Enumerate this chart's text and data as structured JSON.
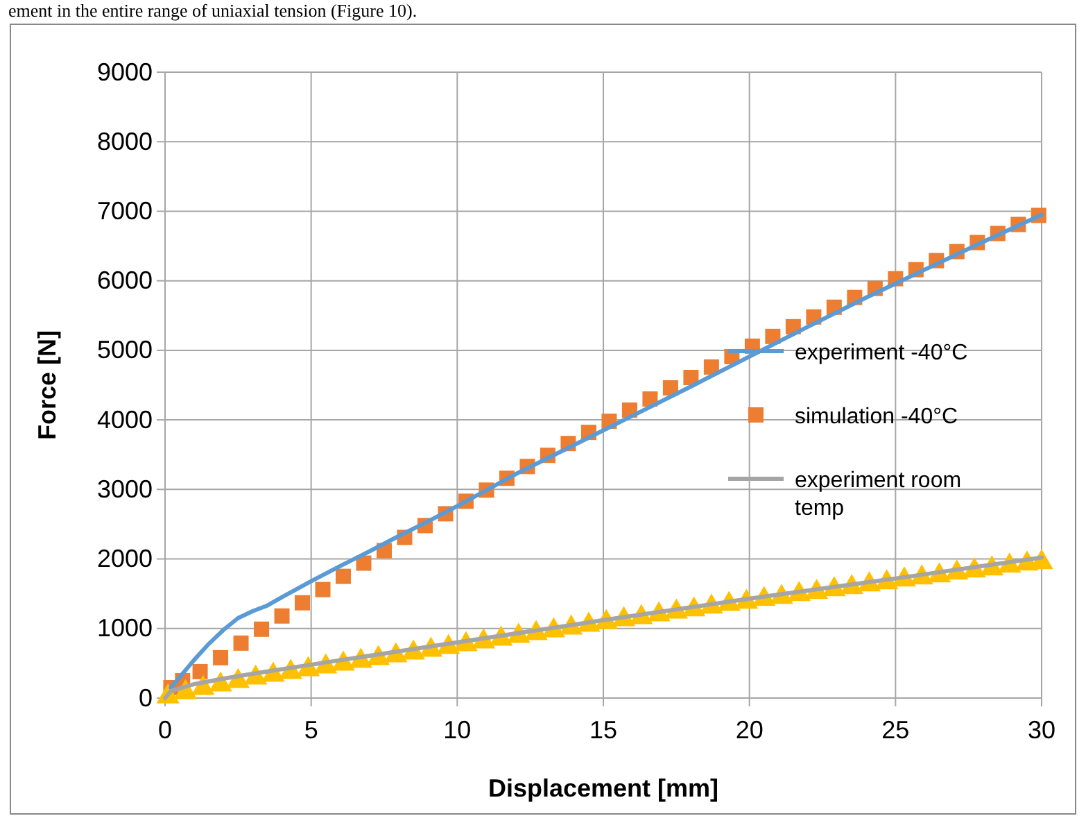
{
  "chart_data": {
    "type": "line",
    "xlabel": "Displacement [mm]",
    "ylabel": "Force [N]",
    "annotations": [
      "ement in the entire range of uniaxial tension (Figure 10)."
    ],
    "xlim": [
      0,
      30
    ],
    "xticks": [
      0,
      5,
      10,
      15,
      20,
      25,
      30
    ],
    "ylim": [
      0,
      9000
    ],
    "yticks": [
      0,
      1000,
      2000,
      3000,
      4000,
      5000,
      6000,
      7000,
      8000,
      9000
    ],
    "grid": true,
    "legend": "right",
    "series": [
      {
        "name": "experiment -40°C",
        "color": "#5b9bd5",
        "marker": "none",
        "x": [
          0.2,
          0.6,
          1,
          1.5,
          2,
          2.5,
          3,
          3.5,
          4,
          5,
          6,
          7,
          8,
          9,
          10,
          12,
          14,
          16,
          18,
          20,
          22,
          24,
          26,
          28,
          30
        ],
        "values": [
          150,
          350,
          550,
          780,
          980,
          1150,
          1250,
          1330,
          1450,
          1680,
          1900,
          2110,
          2330,
          2540,
          2760,
          3220,
          3640,
          4060,
          4480,
          4910,
          5340,
          5760,
          6160,
          6560,
          6950
        ]
      },
      {
        "name": "simulation -40°C",
        "type": "scatter",
        "color": "#ed7d31",
        "marker": "square",
        "x": [
          0.2,
          0.6,
          1.2,
          1.9,
          2.6,
          3.3,
          4.0,
          4.7,
          5.4,
          6.1,
          6.8,
          7.5,
          8.2,
          8.9,
          9.6,
          10.3,
          11.0,
          11.7,
          12.4,
          13.1,
          13.8,
          14.5,
          15.2,
          15.9,
          16.6,
          17.3,
          18.0,
          18.7,
          19.4,
          20.1,
          20.8,
          21.5,
          22.2,
          22.9,
          23.6,
          24.3,
          25.0,
          25.7,
          26.4,
          27.1,
          27.8,
          28.5,
          29.2,
          29.9
        ],
        "values": [
          150,
          250,
          380,
          580,
          790,
          990,
          1180,
          1370,
          1560,
          1750,
          1940,
          2120,
          2310,
          2480,
          2650,
          2830,
          2990,
          3160,
          3330,
          3490,
          3660,
          3820,
          3980,
          4140,
          4300,
          4460,
          4610,
          4760,
          4910,
          5060,
          5200,
          5340,
          5480,
          5620,
          5760,
          5890,
          6030,
          6160,
          6290,
          6420,
          6550,
          6680,
          6810,
          6940
        ]
      },
      {
        "name": "experiment room temp",
        "color": "#a5a5a5",
        "marker": "none",
        "x": [
          0,
          0.2,
          1,
          2,
          3,
          5,
          10,
          15,
          20,
          25,
          30
        ],
        "values": [
          0,
          100,
          200,
          280,
          350,
          480,
          800,
          1120,
          1430,
          1720,
          2020
        ]
      },
      {
        "type": "scatter",
        "color": "#ffc000",
        "marker": "triangle",
        "x": [
          0.1,
          0.7,
          1.3,
          1.9,
          2.5,
          3.1,
          3.7,
          4.3,
          4.9,
          5.5,
          6.1,
          6.7,
          7.3,
          7.9,
          8.5,
          9.1,
          9.7,
          10.3,
          10.9,
          11.5,
          12.1,
          12.7,
          13.3,
          13.9,
          14.5,
          15.1,
          15.7,
          16.3,
          16.9,
          17.5,
          18.1,
          18.7,
          19.3,
          19.9,
          20.5,
          21.1,
          21.7,
          22.3,
          22.9,
          23.5,
          24.1,
          24.7,
          25.3,
          25.9,
          26.5,
          27.1,
          27.7,
          28.3,
          28.9,
          29.5,
          30.0
        ],
        "values": [
          20,
          80,
          140,
          190,
          240,
          290,
          330,
          370,
          410,
          450,
          490,
          530,
          570,
          610,
          650,
          690,
          730,
          770,
          810,
          850,
          890,
          930,
          970,
          1010,
          1050,
          1090,
          1130,
          1160,
          1200,
          1240,
          1270,
          1310,
          1350,
          1380,
          1420,
          1450,
          1490,
          1520,
          1560,
          1590,
          1630,
          1660,
          1700,
          1730,
          1760,
          1800,
          1830,
          1860,
          1900,
          1930,
          1950
        ]
      }
    ]
  }
}
